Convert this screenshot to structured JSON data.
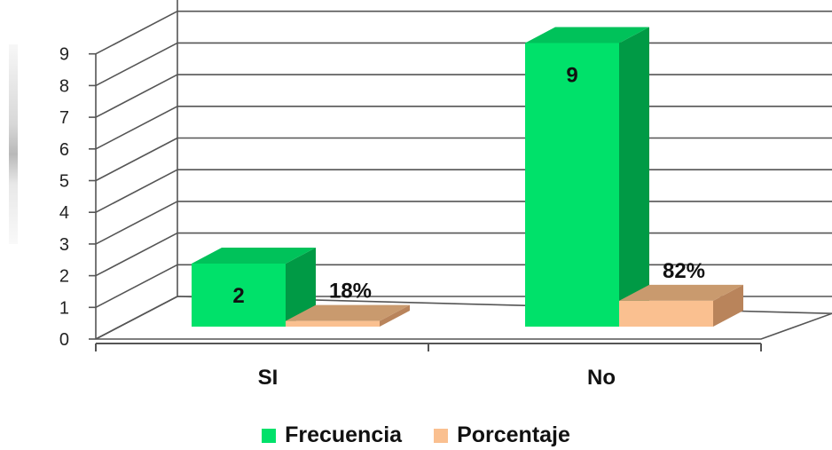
{
  "chart_data": {
    "type": "bar",
    "categories": [
      "SI",
      "No"
    ],
    "series": [
      {
        "name": "Frecuencia",
        "values": [
          2,
          9
        ],
        "labels": [
          "2",
          "9"
        ],
        "color": "#00e16a",
        "side_color": "#009a45",
        "top_color": "#00c25a"
      },
      {
        "name": "Porcentaje",
        "values": [
          0.18,
          0.82
        ],
        "labels": [
          "18%",
          "82%"
        ],
        "color": "#fac090",
        "side_color": "#b9845b",
        "top_color": "#c99a6e"
      }
    ],
    "ylim": [
      0,
      9
    ],
    "yticks": [
      "0",
      "1",
      "2",
      "3",
      "4",
      "5",
      "6",
      "7",
      "8",
      "9"
    ],
    "grid": true,
    "legend_position": "bottom",
    "view": "3d-clustered-column"
  }
}
